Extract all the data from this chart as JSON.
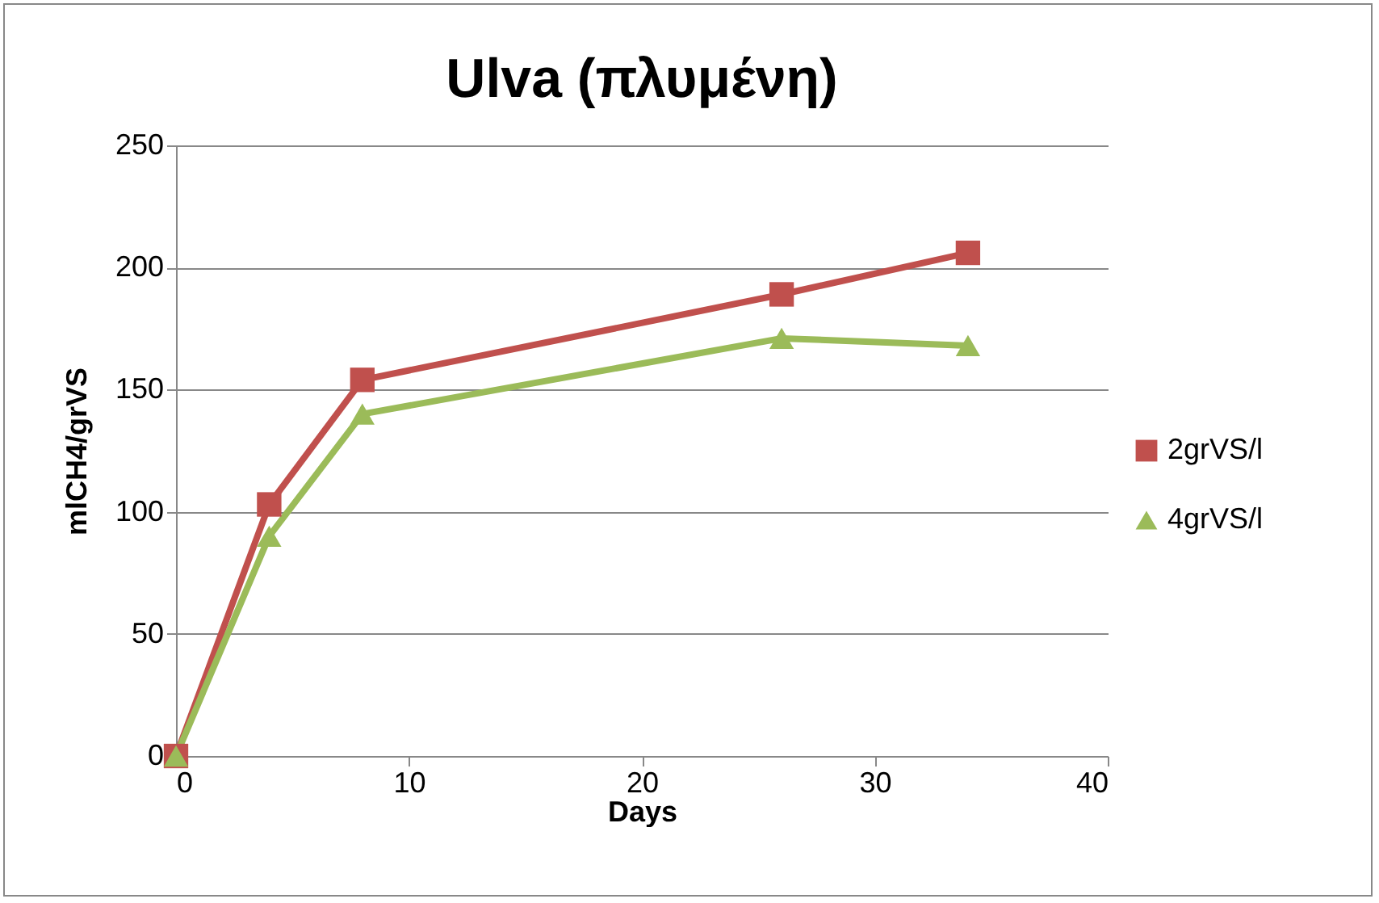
{
  "chart_data": {
    "type": "line",
    "title": "Ulva (πλυμένη)",
    "xlabel": "Days",
    "ylabel": "mlCH4/grVS",
    "x": [
      0,
      4,
      8,
      26,
      34
    ],
    "series": [
      {
        "name": "2grVS/l",
        "color": "#c0504d",
        "marker": "square",
        "values": [
          0,
          103,
          154,
          189,
          206
        ]
      },
      {
        "name": "4grVS/l",
        "color": "#9bbb59",
        "marker": "triangle",
        "values": [
          0,
          90,
          140,
          171,
          168
        ]
      }
    ],
    "xlim": [
      0,
      40
    ],
    "xticks": [
      0,
      10,
      20,
      30,
      40
    ],
    "ylim": [
      0,
      250
    ],
    "yticks": [
      0,
      50,
      100,
      150,
      200,
      250
    ],
    "grid": "y",
    "legend": "right",
    "line_style": "solid"
  }
}
